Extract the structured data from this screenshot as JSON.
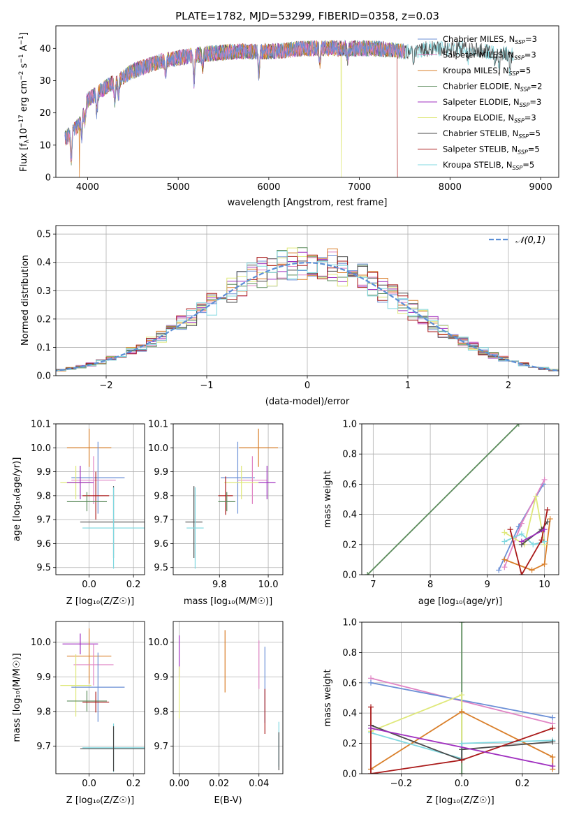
{
  "page_title": "PLATE=1782, MJD=53299, FIBERID=0358, z=0.03",
  "colors": {
    "Chabrier MILES": "#6b8fd6",
    "Salpeter MILES": "#e084c4",
    "Kroupa MILES": "#d97f2a",
    "Chabrier ELODIE": "#5a8a5a",
    "Salpeter ELODIE": "#a030c0",
    "Kroupa ELODIE": "#dfe87a",
    "Chabrier STELIB": "#4a4a4a",
    "Salpeter STELIB": "#aa1a1a",
    "Kroupa STELIB": "#80d8e0",
    "normal_curve": "#5b8fd6"
  },
  "legend_entries": [
    {
      "name": "Chabrier MILES",
      "nssp": "3"
    },
    {
      "name": "Salpeter MILES",
      "nssp": "3"
    },
    {
      "name": "Kroupa MILES",
      "nssp": "5"
    },
    {
      "name": "Chabrier ELODIE",
      "nssp": "2"
    },
    {
      "name": "Salpeter ELODIE",
      "nssp": "3"
    },
    {
      "name": "Kroupa ELODIE",
      "nssp": "3"
    },
    {
      "name": "Chabrier STELIB",
      "nssp": "5"
    },
    {
      "name": "Salpeter STELIB",
      "nssp": "5"
    },
    {
      "name": "Kroupa STELIB",
      "nssp": "5"
    }
  ],
  "chart_data": [
    {
      "id": "spectrum",
      "type": "line",
      "title": "PLATE=1782, MJD=53299, FIBERID=0358, z=0.03",
      "xlabel": "wavelength [Angstrom, rest frame]",
      "ylabel": "Flux [f_λ 10^-17 erg cm^-2 s^-1 A^-1]",
      "xlim": [
        3650,
        9200
      ],
      "ylim": [
        0,
        47
      ],
      "xticks": [
        4000,
        5000,
        6000,
        7000,
        8000,
        9000
      ],
      "yticks": [
        0,
        10,
        20,
        30,
        40
      ],
      "continuum": {
        "x": [
          3750,
          3900,
          4000,
          4200,
          4500,
          4800,
          5200,
          5600,
          6000,
          6400,
          6800,
          7200,
          7500
        ],
        "y": [
          12,
          16,
          24,
          28,
          33,
          36,
          38,
          39,
          39,
          40,
          40,
          40,
          39
        ]
      },
      "red_tail": {
        "x": [
          7500,
          7800,
          8100,
          8400,
          8700
        ],
        "y": [
          39,
          40,
          40,
          39,
          38
        ]
      },
      "dropouts": [
        {
          "series": "Kroupa MILES",
          "x": 3910
        },
        {
          "series": "Kroupa ELODIE",
          "x": 6800
        },
        {
          "series": "Salpeter STELIB",
          "x": 7420
        }
      ]
    },
    {
      "id": "residuals",
      "type": "histogram",
      "xlabel": "(data-model)/error",
      "ylabel": "Normed distribution",
      "xlim": [
        -2.5,
        2.5
      ],
      "ylim": [
        0,
        0.53
      ],
      "xticks": [
        -2,
        -1,
        0,
        1,
        2
      ],
      "yticks": [
        0.0,
        0.1,
        0.2,
        0.3,
        0.4,
        0.5
      ],
      "grid": true,
      "bin_width": 0.1,
      "reference": {
        "name": "𝒩(0,1)",
        "mean": 0,
        "sigma": 1
      },
      "legend_placement": "top-right"
    },
    {
      "id": "age_vs_Z",
      "type": "errorbar",
      "xlabel": "Z [log10(Z/Z☉)]",
      "ylabel": "age [log10(age/yr)]",
      "xlim": [
        -0.15,
        0.25
      ],
      "ylim": [
        9.47,
        10.1
      ],
      "xticks": [
        0.0,
        0.2
      ],
      "yticks": [
        9.5,
        9.6,
        9.7,
        9.8,
        9.9,
        10.0,
        10.1
      ],
      "points": [
        {
          "series": "Kroupa MILES",
          "x": 0.0,
          "y": 10.0,
          "xerr": 0.1,
          "yerr": 0.08
        },
        {
          "series": "Chabrier MILES",
          "x": 0.04,
          "y": 9.875,
          "xerr": 0.12,
          "yerr": 0.15
        },
        {
          "series": "Salpeter MILES",
          "x": 0.02,
          "y": 9.865,
          "xerr": 0.1,
          "yerr": 0.1
        },
        {
          "series": "Kroupa ELODIE",
          "x": -0.06,
          "y": 9.855,
          "xerr": 0.07,
          "yerr": 0.07
        },
        {
          "series": "Salpeter ELODIE",
          "x": -0.04,
          "y": 9.855,
          "xerr": 0.06,
          "yerr": 0.07
        },
        {
          "series": "Salpeter STELIB",
          "x": 0.03,
          "y": 9.8,
          "xerr": 0.06,
          "yerr": 0.1
        },
        {
          "series": "Chabrier ELODIE",
          "x": -0.01,
          "y": 9.775,
          "xerr": 0.09,
          "yerr": 0.04
        },
        {
          "series": "Chabrier STELIB",
          "x": 0.11,
          "y": 9.69,
          "xerr": 0.15,
          "yerr": 0.15
        },
        {
          "series": "Kroupa STELIB",
          "x": 0.11,
          "y": 9.665,
          "xerr": 0.14,
          "yerr": 0.17
        }
      ]
    },
    {
      "id": "age_vs_mass",
      "type": "errorbar",
      "xlabel": "mass [log10(M/M☉)]",
      "ylabel": "",
      "xlim": [
        9.61,
        10.06
      ],
      "ylim": [
        9.47,
        10.1
      ],
      "xticks": [
        9.8,
        10.0
      ],
      "yticks": [
        9.5,
        9.6,
        9.7,
        9.8,
        9.9,
        10.0,
        10.1
      ],
      "points": [
        {
          "series": "Kroupa MILES",
          "x": 9.96,
          "y": 10.0,
          "xerr": 0.08,
          "yerr": 0.08
        },
        {
          "series": "Chabrier MILES",
          "x": 9.875,
          "y": 9.875,
          "xerr": 0.07,
          "yerr": 0.15
        },
        {
          "series": "Salpeter MILES",
          "x": 9.935,
          "y": 9.865,
          "xerr": 0.06,
          "yerr": 0.1
        },
        {
          "series": "Kroupa ELODIE",
          "x": 9.89,
          "y": 9.855,
          "xerr": 0.07,
          "yerr": 0.07
        },
        {
          "series": "Salpeter ELODIE",
          "x": 9.995,
          "y": 9.855,
          "xerr": 0.035,
          "yerr": 0.07
        },
        {
          "series": "Salpeter STELIB",
          "x": 9.825,
          "y": 9.8,
          "xerr": 0.03,
          "yerr": 0.08
        },
        {
          "series": "Chabrier ELODIE",
          "x": 9.83,
          "y": 9.775,
          "xerr": 0.035,
          "yerr": 0.04
        },
        {
          "series": "Chabrier STELIB",
          "x": 9.695,
          "y": 9.69,
          "xerr": 0.035,
          "yerr": 0.15
        },
        {
          "series": "Kroupa STELIB",
          "x": 9.7,
          "y": 9.665,
          "xerr": 0.035,
          "yerr": 0.17
        }
      ]
    },
    {
      "id": "weight_vs_age",
      "type": "line",
      "xlabel": "age [log10(age/yr)]",
      "ylabel": "mass weight",
      "xlim": [
        6.8,
        10.25
      ],
      "ylim": [
        0,
        1.0
      ],
      "xticks": [
        7,
        8,
        9,
        10
      ],
      "yticks": [
        0.0,
        0.2,
        0.4,
        0.6,
        0.8,
        1.0
      ],
      "grid": true,
      "series": [
        {
          "name": "Chabrier ELODIE",
          "x": [
            6.9,
            9.55
          ],
          "y": [
            0.0,
            1.0
          ]
        },
        {
          "name": "Chabrier MILES",
          "x": [
            9.2,
            9.55,
            9.98
          ],
          "y": [
            0.03,
            0.32,
            0.6
          ]
        },
        {
          "name": "Salpeter MILES",
          "x": [
            9.3,
            9.6,
            10.0
          ],
          "y": [
            0.05,
            0.34,
            0.63
          ]
        },
        {
          "name": "Kroupa MILES",
          "x": [
            9.3,
            9.78,
            10.0,
            10.1
          ],
          "y": [
            0.1,
            0.03,
            0.07,
            0.37
          ]
        },
        {
          "name": "Kroupa ELODIE",
          "x": [
            9.3,
            9.65,
            9.85,
            10.0
          ],
          "y": [
            0.28,
            0.2,
            0.52,
            0.2
          ]
        },
        {
          "name": "Kroupa STELIB",
          "x": [
            9.3,
            9.6,
            9.8,
            10.0
          ],
          "y": [
            0.22,
            0.27,
            0.2,
            0.22
          ]
        },
        {
          "name": "Chabrier STELIB",
          "x": [
            9.6,
            9.95,
            10.05
          ],
          "y": [
            0.2,
            0.3,
            0.35
          ]
        },
        {
          "name": "Salpeter STELIB",
          "x": [
            9.4,
            9.6,
            9.95,
            10.05
          ],
          "y": [
            0.3,
            0.0,
            0.23,
            0.43
          ]
        },
        {
          "name": "Salpeter ELODIE",
          "x": [
            9.6,
            10.0
          ],
          "y": [
            0.22,
            0.3
          ]
        }
      ]
    },
    {
      "id": "mass_vs_Z",
      "type": "errorbar",
      "xlabel": "Z [log10(Z/Z☉)]",
      "ylabel": "mass [log10(M/M☉)]",
      "xlim": [
        -0.15,
        0.25
      ],
      "ylim": [
        9.62,
        10.06
      ],
      "xticks": [
        0.0,
        0.2
      ],
      "yticks": [
        9.7,
        9.8,
        9.9,
        10.0
      ],
      "points": [
        {
          "series": "Salpeter ELODIE",
          "x": -0.04,
          "y": 9.995,
          "xerr": 0.08,
          "yerr": 0.03
        },
        {
          "series": "Kroupa MILES",
          "x": 0.0,
          "y": 9.96,
          "xerr": 0.1,
          "yerr": 0.08
        },
        {
          "series": "Salpeter MILES",
          "x": 0.02,
          "y": 9.935,
          "xerr": 0.09,
          "yerr": 0.06
        },
        {
          "series": "Kroupa ELODIE",
          "x": -0.06,
          "y": 9.875,
          "xerr": 0.07,
          "yerr": 0.09
        },
        {
          "series": "Chabrier MILES",
          "x": 0.04,
          "y": 9.87,
          "xerr": 0.12,
          "yerr": 0.1
        },
        {
          "series": "Chabrier ELODIE",
          "x": -0.01,
          "y": 9.83,
          "xerr": 0.09,
          "yerr": 0.03
        },
        {
          "series": "Salpeter STELIB",
          "x": 0.03,
          "y": 9.827,
          "xerr": 0.06,
          "yerr": 0.03
        },
        {
          "series": "Kroupa STELIB",
          "x": 0.11,
          "y": 9.695,
          "xerr": 0.14,
          "yerr": 0.07
        },
        {
          "series": "Chabrier STELIB",
          "x": 0.11,
          "y": 9.692,
          "xerr": 0.15,
          "yerr": 0.065
        }
      ]
    },
    {
      "id": "mass_vs_EBV",
      "type": "errorbar",
      "xlabel": "E(B-V)",
      "ylabel": "",
      "xlim": [
        -0.003,
        0.052
      ],
      "ylim": [
        9.62,
        10.06
      ],
      "xticks": [
        0.0,
        0.02,
        0.04
      ],
      "yticks": [
        9.7,
        9.8,
        9.9,
        10.0
      ],
      "points": [
        {
          "series": "Salpeter ELODIE",
          "x": 0.0,
          "y": 9.96,
          "xerr": 0,
          "yerr": 0.06
        },
        {
          "series": "Kroupa ELODIE",
          "x": 0.0,
          "y": 9.855,
          "xerr": 0,
          "yerr": 0.075
        },
        {
          "series": "Kroupa MILES",
          "x": 0.023,
          "y": 9.945,
          "xerr": 0,
          "yerr": 0.09
        },
        {
          "series": "Salpeter MILES",
          "x": 0.04,
          "y": 9.935,
          "xerr": 0,
          "yerr": 0.07
        },
        {
          "series": "Chabrier MILES",
          "x": 0.043,
          "y": 9.877,
          "xerr": 0,
          "yerr": 0.11
        },
        {
          "series": "Salpeter STELIB",
          "x": 0.043,
          "y": 9.8,
          "xerr": 0,
          "yerr": 0.065
        },
        {
          "series": "Kroupa STELIB",
          "x": 0.05,
          "y": 9.705,
          "xerr": 0,
          "yerr": 0.065
        },
        {
          "series": "Chabrier STELIB",
          "x": 0.05,
          "y": 9.685,
          "xerr": 0,
          "yerr": 0.055
        }
      ]
    },
    {
      "id": "weight_vs_Z",
      "type": "line",
      "xlabel": "Z [log10(Z/Z☉)]",
      "ylabel": "mass weight",
      "xlim": [
        -0.33,
        0.32
      ],
      "ylim": [
        0,
        1.0
      ],
      "xticks": [
        -0.2,
        0.0,
        0.2
      ],
      "yticks": [
        0.0,
        0.2,
        0.4,
        0.6,
        0.8,
        1.0
      ],
      "grid": true,
      "series": [
        {
          "name": "Chabrier ELODIE",
          "x": [
            0.0,
            0.0
          ],
          "y": [
            0.0,
            1.0
          ]
        },
        {
          "name": "Salpeter MILES",
          "x": [
            -0.3,
            0.3
          ],
          "y": [
            0.63,
            0.33
          ]
        },
        {
          "name": "Chabrier MILES",
          "x": [
            -0.3,
            0.3
          ],
          "y": [
            0.6,
            0.37
          ]
        },
        {
          "name": "Kroupa ELODIE",
          "x": [
            -0.3,
            0.0,
            0.0
          ],
          "y": [
            0.28,
            0.52,
            0.2
          ]
        },
        {
          "name": "Kroupa MILES",
          "x": [
            -0.3,
            0.0,
            0.3,
            0.3
          ],
          "y": [
            0.03,
            0.41,
            0.11,
            0.03
          ]
        },
        {
          "name": "Kroupa STELIB",
          "x": [
            -0.3,
            0.0,
            0.0,
            0.3
          ],
          "y": [
            0.27,
            0.1,
            0.2,
            0.22
          ]
        },
        {
          "name": "Chabrier STELIB",
          "x": [
            -0.3,
            0.0,
            0.0,
            0.3
          ],
          "y": [
            0.32,
            0.09,
            0.16,
            0.21
          ]
        },
        {
          "name": "Salpeter STELIB",
          "x": [
            -0.3,
            -0.3,
            0.0,
            0.3
          ],
          "y": [
            0.44,
            0.0,
            0.09,
            0.3
          ]
        },
        {
          "name": "Salpeter ELODIE",
          "x": [
            -0.3,
            0.3
          ],
          "y": [
            0.3,
            0.05
          ]
        }
      ]
    }
  ]
}
